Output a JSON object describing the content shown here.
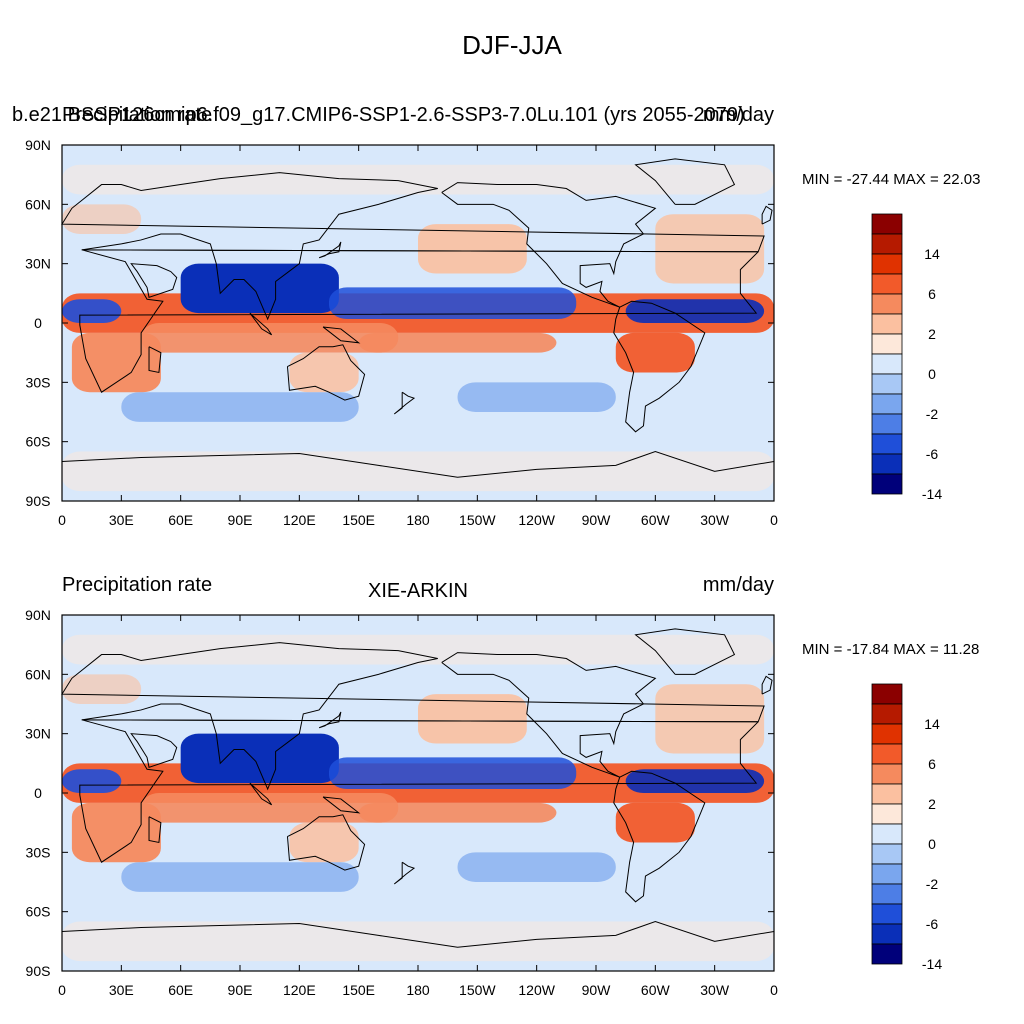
{
  "figure": {
    "title": "DJF-JJA"
  },
  "contour_levels": [
    "14",
    "6",
    "2",
    "0",
    "-2",
    "-6",
    "-14"
  ],
  "colors": {
    "palette": [
      "#8b0000",
      "#b51a00",
      "#e03200",
      "#f25a2a",
      "#f58a5e",
      "#fbc0a0",
      "#fde8da",
      "#d8e8fb",
      "#a8c8f5",
      "#7aa6ee",
      "#4d7ee6",
      "#1f4fd9",
      "#0a2fb8",
      "#001a8a",
      "#00007a"
    ],
    "coastline": "#000000"
  },
  "x_ticks": [
    "0",
    "30E",
    "60E",
    "90E",
    "120E",
    "150E",
    "180",
    "150W",
    "120W",
    "90W",
    "60W",
    "30W",
    "0"
  ],
  "y_ticks": [
    "90N",
    "60N",
    "30N",
    "0",
    "30S",
    "60S",
    "90S"
  ],
  "panels": [
    {
      "left_label_a": "b.e21.BSSP126cmip6.f09_g17.CMIP6-SSP1-2.6-SSP3-7.0Lu.101 (yrs 2055-2079)",
      "left_label_b": "Precipitation rate",
      "center_label": "",
      "right_label": "mm/day",
      "minmax": "MIN = -27.44 MAX =  22.03"
    },
    {
      "left_label_a": "Precipitation rate",
      "left_label_b": "",
      "center_label": "XIE-ARKIN",
      "right_label": "mm/day",
      "minmax": "MIN = -17.84 MAX =  11.28"
    }
  ]
}
